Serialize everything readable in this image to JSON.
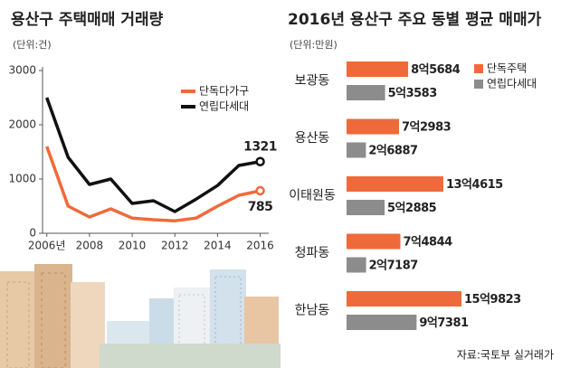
{
  "chart_data": [
    {
      "type": "line",
      "title": "용산구 주택매매 거래량",
      "subtitle": "(단위:건)",
      "x": [
        2006,
        2007,
        2008,
        2009,
        2010,
        2011,
        2012,
        2013,
        2014,
        2015,
        2016
      ],
      "series": [
        {
          "name": "단독다가구",
          "color": "#ef6a3a",
          "values": [
            1600,
            500,
            300,
            450,
            280,
            250,
            230,
            280,
            500,
            700,
            785
          ]
        },
        {
          "name": "연립다세대",
          "color": "#111111",
          "values": [
            2500,
            1400,
            900,
            1000,
            550,
            600,
            400,
            630,
            880,
            1250,
            1321
          ]
        }
      ],
      "xlim": [
        2005.8,
        2016.4
      ],
      "xticks": [
        {
          "value": 2006,
          "label": "2006년"
        },
        2008,
        2010,
        2012,
        2014,
        2016
      ],
      "ylim": [
        0,
        3000
      ],
      "yticks": [
        0,
        1000,
        2000,
        3000
      ],
      "grid": false,
      "legend": "upper right"
    },
    {
      "type": "barh",
      "title": "2016년 용산구 주요 동별 평균 매매가",
      "subtitle": "(단위:만원)",
      "categories": [
        "보광동",
        "용산동",
        "이태원동",
        "청파동",
        "한남동"
      ],
      "series": [
        {
          "name": "단독주택",
          "color": "#ef6a3a",
          "values": [
            85684,
            72983,
            134615,
            74844,
            159823
          ],
          "value_labels": [
            "8억5684",
            "7억2983",
            "13억4615",
            "7억4844",
            "15억9823"
          ]
        },
        {
          "name": "연립다세대",
          "color": "#8c8c8c",
          "values": [
            53583,
            26887,
            52885,
            27187,
            97381
          ],
          "value_labels": [
            "5억3583",
            "2억6887",
            "5억2885",
            "2억7187",
            "9억7381"
          ]
        }
      ],
      "legend": "upper right",
      "source": "자료:국토부 실거래가"
    }
  ]
}
